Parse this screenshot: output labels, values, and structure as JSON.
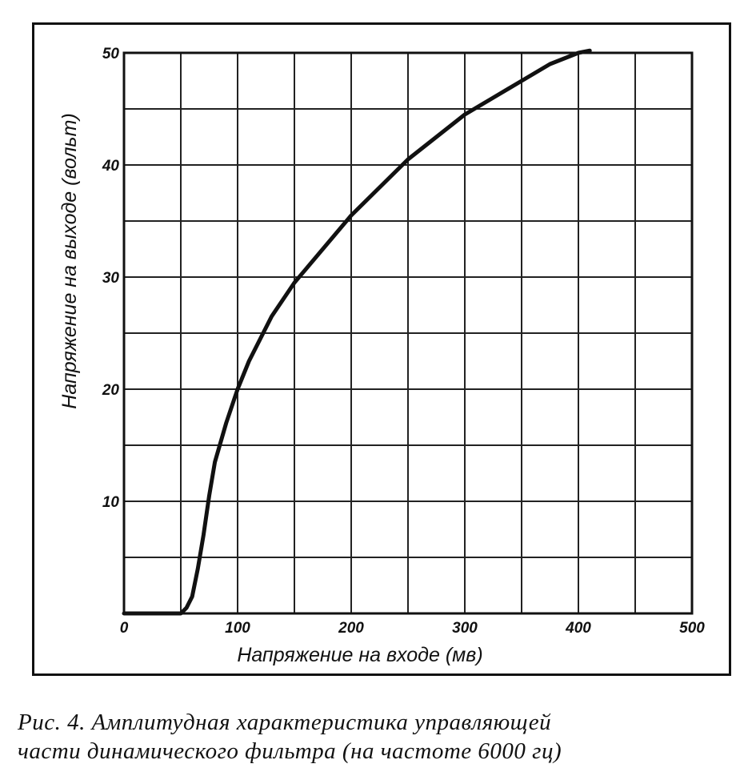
{
  "chart_data": {
    "type": "line",
    "xlabel": "Напряжение на входе (мв)",
    "ylabel": "Напряжение на выходе (вольт)",
    "xlim": [
      0,
      500
    ],
    "ylim": [
      0,
      50
    ],
    "x_ticks": [
      0,
      100,
      200,
      300,
      400,
      500
    ],
    "x_tick_labels": [
      "0",
      "100",
      "200",
      "300",
      "400",
      "500"
    ],
    "y_ticks": [
      10,
      20,
      30,
      40,
      50
    ],
    "y_tick_labels": [
      "10",
      "20",
      "30",
      "40",
      "50"
    ],
    "grid": true,
    "grid_step_x": 50,
    "grid_step_y": 5,
    "series": [
      {
        "x": [
          0,
          20,
          40,
          50,
          55,
          60,
          65,
          70,
          75,
          80,
          90,
          100,
          110,
          120,
          130,
          140,
          150,
          175,
          200,
          225,
          250,
          275,
          300,
          325,
          350,
          375,
          400,
          410
        ],
        "y": [
          0,
          0,
          0,
          0,
          0.5,
          1.5,
          4,
          7,
          10.5,
          13.5,
          17,
          20,
          22.5,
          24.5,
          26.5,
          28,
          29.5,
          32.5,
          35.5,
          38,
          40.5,
          42.5,
          44.5,
          46,
          47.5,
          49,
          50,
          50.3
        ]
      }
    ],
    "color": "#111111"
  },
  "caption": {
    "line1": "Рис. 4. Амплитудная характеристика управляющей",
    "line2": "части динамического фильтра (на частоте 6000 гц)"
  }
}
